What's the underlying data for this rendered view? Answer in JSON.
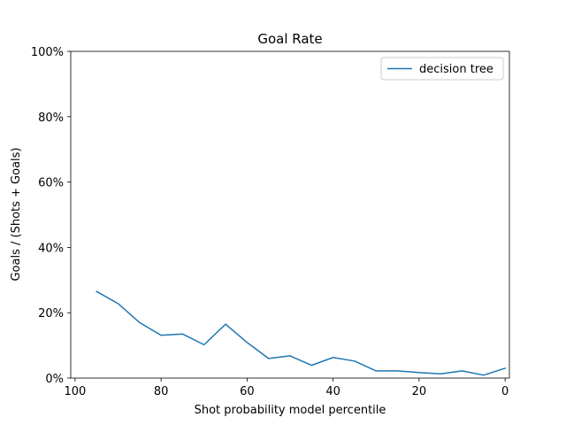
{
  "chart_data": {
    "type": "line",
    "title": "Goal Rate",
    "xlabel": "Shot probability model percentile",
    "ylabel": "Goals / (Shots + Goals)",
    "xlim": [
      101,
      -1
    ],
    "ylim": [
      0,
      100
    ],
    "x_ticks": [
      {
        "value": 100,
        "label": "100"
      },
      {
        "value": 80,
        "label": "80"
      },
      {
        "value": 60,
        "label": "60"
      },
      {
        "value": 40,
        "label": "40"
      },
      {
        "value": 20,
        "label": "20"
      },
      {
        "value": 0,
        "label": "0"
      }
    ],
    "y_ticks": [
      {
        "value": 0,
        "label": "0%"
      },
      {
        "value": 20,
        "label": "20%"
      },
      {
        "value": 40,
        "label": "40%"
      },
      {
        "value": 60,
        "label": "60%"
      },
      {
        "value": 80,
        "label": "80%"
      },
      {
        "value": 100,
        "label": "100%"
      }
    ],
    "grid": false,
    "legend_position": "top-right",
    "series": [
      {
        "name": "decision tree",
        "color": "#1f77b4",
        "x": [
          95,
          90,
          85,
          80,
          75,
          70,
          65,
          60,
          55,
          50,
          45,
          40,
          35,
          30,
          25,
          20,
          15,
          10,
          5,
          0
        ],
        "y": [
          26.5,
          22.8,
          17.0,
          13.1,
          13.5,
          10.2,
          16.5,
          10.9,
          6.0,
          6.8,
          3.9,
          6.3,
          5.2,
          2.2,
          2.2,
          1.7,
          1.3,
          2.2,
          0.9,
          3.0
        ]
      }
    ]
  }
}
